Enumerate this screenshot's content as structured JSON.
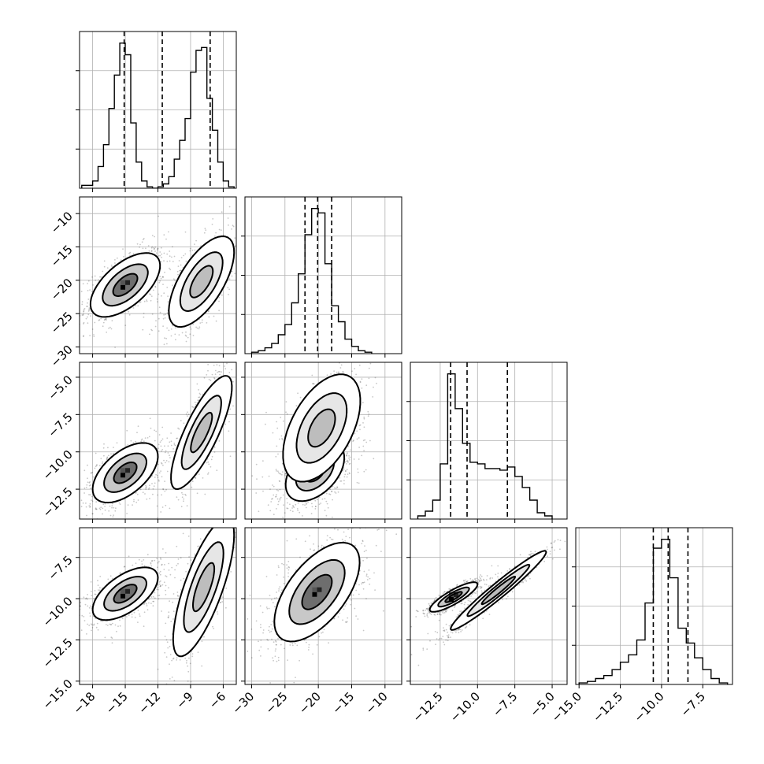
{
  "chart_data": {
    "type": "corner",
    "variables": [
      {
        "label": "",
        "range": [
          -19.2,
          -4.8
        ],
        "ticks": [
          -18,
          -15,
          -12,
          -9,
          -6
        ],
        "tick_labels": [
          "−18",
          "−15",
          "−12",
          "−9",
          "−6"
        ]
      },
      {
        "label": "",
        "range": [
          -31,
          -7.5
        ],
        "ticks": [
          -30,
          -25,
          -20,
          -15,
          -10
        ],
        "tick_labels": [
          "−30",
          "−25",
          "−20",
          "−15",
          "−10"
        ]
      },
      {
        "label": "",
        "range": [
          -14.5,
          -4.0
        ],
        "ticks": [
          -12.5,
          -10.0,
          -7.5,
          -5.0
        ],
        "tick_labels": [
          "−12.5",
          "−10.0",
          "−7.5",
          "−5.0"
        ]
      },
      {
        "label": "",
        "range": [
          -15.2,
          -5.7
        ],
        "ticks": [
          -15.0,
          -12.5,
          -10.0,
          -7.5
        ],
        "tick_labels": [
          "−15.0",
          "−12.5",
          "−10.0",
          "−7.5"
        ]
      }
    ],
    "quantile_lines": [
      [
        -15.1,
        -11.6,
        -7.2
      ],
      [
        -22.0,
        -20.1,
        -18.0
      ],
      [
        -11.8,
        -10.7,
        -8.0
      ],
      [
        -10.5,
        -9.6,
        -8.4
      ]
    ],
    "histograms": [
      {
        "bin_edges": [
          -19.0,
          -18.0,
          -17.5,
          -17.0,
          -16.5,
          -16.0,
          -15.5,
          -15.0,
          -14.5,
          -14.0,
          -13.5,
          -13.0,
          -12.5,
          -12.0,
          -11.5,
          -11.0,
          -10.5,
          -10.0,
          -9.5,
          -9.0,
          -8.5,
          -8.0,
          -7.5,
          -7.0,
          -6.5,
          -6.0,
          -5.5,
          -5.0
        ],
        "counts": [
          0.02,
          0.05,
          0.15,
          0.3,
          0.55,
          0.78,
          1.0,
          0.92,
          0.45,
          0.18,
          0.05,
          0.01,
          0.0,
          0.01,
          0.03,
          0.08,
          0.2,
          0.33,
          0.48,
          0.8,
          0.95,
          0.97,
          0.62,
          0.4,
          0.18,
          0.05,
          0.01
        ]
      },
      {
        "bin_edges": [
          -30,
          -29,
          -28,
          -27,
          -26,
          -25,
          -24,
          -23,
          -22,
          -21,
          -20,
          -19,
          -18,
          -17,
          -16,
          -15,
          -14,
          -13,
          -12
        ],
        "counts": [
          0.01,
          0.02,
          0.04,
          0.07,
          0.13,
          0.2,
          0.35,
          0.55,
          0.82,
          1.0,
          0.97,
          0.62,
          0.33,
          0.22,
          0.1,
          0.05,
          0.02,
          0.01
        ]
      },
      {
        "bin_edges": [
          -14.0,
          -13.5,
          -13.0,
          -12.5,
          -12.0,
          -11.5,
          -11.0,
          -10.5,
          -10.0,
          -9.5,
          -9.0,
          -8.5,
          -8.0,
          -7.5,
          -7.0,
          -6.5,
          -6.0,
          -5.5,
          -5.0
        ],
        "counts": [
          0.02,
          0.05,
          0.12,
          0.35,
          0.92,
          0.7,
          0.48,
          0.36,
          0.35,
          0.32,
          0.32,
          0.31,
          0.33,
          0.27,
          0.2,
          0.12,
          0.04,
          0.02
        ]
      },
      {
        "bin_edges": [
          -15.0,
          -14.5,
          -14.0,
          -13.5,
          -13.0,
          -12.5,
          -12.0,
          -11.5,
          -11.0,
          -10.5,
          -10.0,
          -9.5,
          -9.0,
          -8.5,
          -8.0,
          -7.5,
          -7.0,
          -6.5,
          -6.0
        ],
        "counts": [
          0.01,
          0.02,
          0.04,
          0.06,
          0.1,
          0.15,
          0.2,
          0.3,
          0.55,
          0.92,
          0.98,
          0.72,
          0.38,
          0.28,
          0.18,
          0.1,
          0.04,
          0.01
        ]
      }
    ],
    "pairs": [
      {
        "x": 0,
        "y": 1,
        "clusters": [
          {
            "cx": -15.0,
            "cy": -20.7,
            "sx": 1.6,
            "sy": 2.4,
            "rho": 0.6,
            "weight": 1.0,
            "dense": true
          },
          {
            "cx": -8.0,
            "cy": -20.2,
            "sx": 1.5,
            "sy": 3.4,
            "rho": 0.65,
            "weight": 1.0,
            "dense": false
          }
        ]
      },
      {
        "x": 0,
        "y": 2,
        "clusters": [
          {
            "cx": -15.0,
            "cy": -11.4,
            "sx": 1.5,
            "sy": 1.0,
            "rho": 0.55,
            "weight": 1.0,
            "dense": true
          },
          {
            "cx": -8.0,
            "cy": -8.7,
            "sx": 1.4,
            "sy": 1.9,
            "rho": 0.8,
            "weight": 1.0,
            "dense": false
          }
        ]
      },
      {
        "x": 1,
        "y": 2,
        "clusters": [
          {
            "cx": -20.5,
            "cy": -11.3,
            "sx": 2.2,
            "sy": 1.0,
            "rho": 0.45,
            "weight": 1.0,
            "dense": true
          },
          {
            "cx": -19.5,
            "cy": -8.4,
            "sx": 2.9,
            "sy": 1.8,
            "rho": 0.5,
            "weight": 1.0,
            "dense": false
          }
        ]
      },
      {
        "x": 0,
        "y": 3,
        "clusters": [
          {
            "cx": -15.0,
            "cy": -9.7,
            "sx": 1.5,
            "sy": 0.8,
            "rho": 0.6,
            "weight": 1.0,
            "dense": true
          },
          {
            "cx": -7.8,
            "cy": -9.3,
            "sx": 1.4,
            "sy": 2.1,
            "rho": 0.75,
            "weight": 1.0,
            "dense": false
          }
        ]
      },
      {
        "x": 1,
        "y": 3,
        "clusters": [
          {
            "cx": -20.2,
            "cy": -9.6,
            "sx": 3.2,
            "sy": 1.5,
            "rho": 0.6,
            "weight": 1.0,
            "dense": true
          }
        ]
      },
      {
        "x": 2,
        "y": 3,
        "clusters": [
          {
            "cx": -11.6,
            "cy": -9.9,
            "sx": 0.8,
            "sy": 0.45,
            "rho": 0.85,
            "weight": 1.0,
            "dense": true
          },
          {
            "cx": -8.6,
            "cy": -9.5,
            "sx": 1.6,
            "sy": 1.2,
            "rho": 0.97,
            "weight": 1.0,
            "dense": false
          }
        ]
      }
    ],
    "grid": true,
    "legend": "none",
    "title": "",
    "xlabel": "",
    "ylabel": ""
  }
}
